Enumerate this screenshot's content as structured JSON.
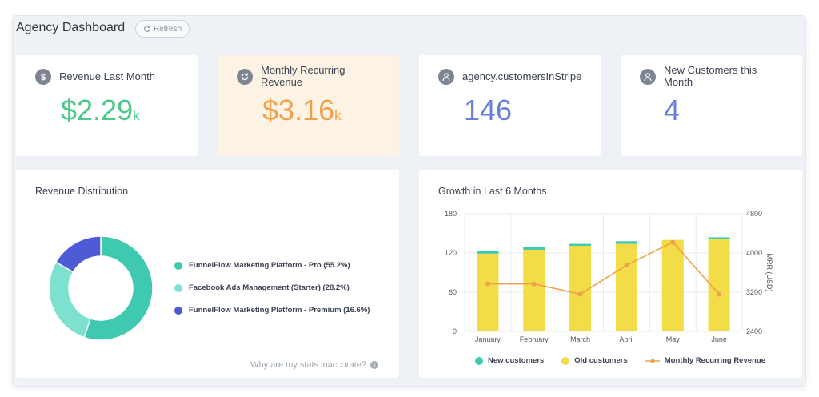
{
  "header": {
    "title": "Agency Dashboard",
    "refresh_label": "Refresh"
  },
  "stats": [
    {
      "label": "Revenue Last Month",
      "value": "$2.29",
      "suffix": "k",
      "color": "#4cc98a",
      "icon": "dollar-icon"
    },
    {
      "label": "Monthly Recurring Revenue",
      "value": "$3.16",
      "suffix": "k",
      "color": "#f0a04b",
      "icon": "refresh-icon"
    },
    {
      "label": "agency.customersInStripe",
      "value": "146",
      "suffix": "",
      "color": "#6a7fd6",
      "icon": "users-icon"
    },
    {
      "label": "New Customers this Month",
      "value": "4",
      "suffix": "",
      "color": "#6a7fd6",
      "icon": "users-icon"
    }
  ],
  "revenue_distribution": {
    "title": "Revenue Distribution",
    "footer_link": "Why are my stats inaccurate?",
    "chart_data": {
      "type": "pie",
      "donut": true,
      "slices": [
        {
          "label": "FunnelFlow Marketing Platform - Pro (55.2%)",
          "value": 55.2,
          "color": "#3ec9b0"
        },
        {
          "label": "Facebook Ads Management (Starter) (28.2%)",
          "value": 28.2,
          "color": "#7ee0cf"
        },
        {
          "label": "FunnelFlow Marketing Platform - Premium (16.6%)",
          "value": 16.6,
          "color": "#4f5bd5"
        }
      ]
    }
  },
  "growth": {
    "title": "Growth in Last 6 Months",
    "chart_data": {
      "type": "bar",
      "stacked": true,
      "categories": [
        "January",
        "February",
        "March",
        "April",
        "May",
        "June"
      ],
      "series": [
        {
          "name": "New customers",
          "type": "bar",
          "axis": "left",
          "color": "#3ec9b0",
          "values": [
            4,
            4,
            3,
            4,
            0,
            2
          ]
        },
        {
          "name": "Old customers",
          "type": "bar",
          "axis": "left",
          "color": "#f2dc48",
          "values": [
            119,
            125,
            131,
            134,
            140,
            142
          ]
        },
        {
          "name": "Monthly Recurring Revenue",
          "type": "line",
          "axis": "right",
          "color": "#f0a04b",
          "values": [
            3370,
            3370,
            3160,
            3750,
            4220,
            3160
          ]
        }
      ],
      "yleft": {
        "ticks": [
          "0",
          "60",
          "120",
          "180"
        ],
        "ylim": [
          0,
          180
        ]
      },
      "yright": {
        "ticks": [
          "2400",
          "3200",
          "4000",
          "4800"
        ],
        "ylim": [
          2400,
          4800
        ],
        "label": "MRR (USD)"
      },
      "grid": true,
      "legend": "bottom"
    }
  }
}
